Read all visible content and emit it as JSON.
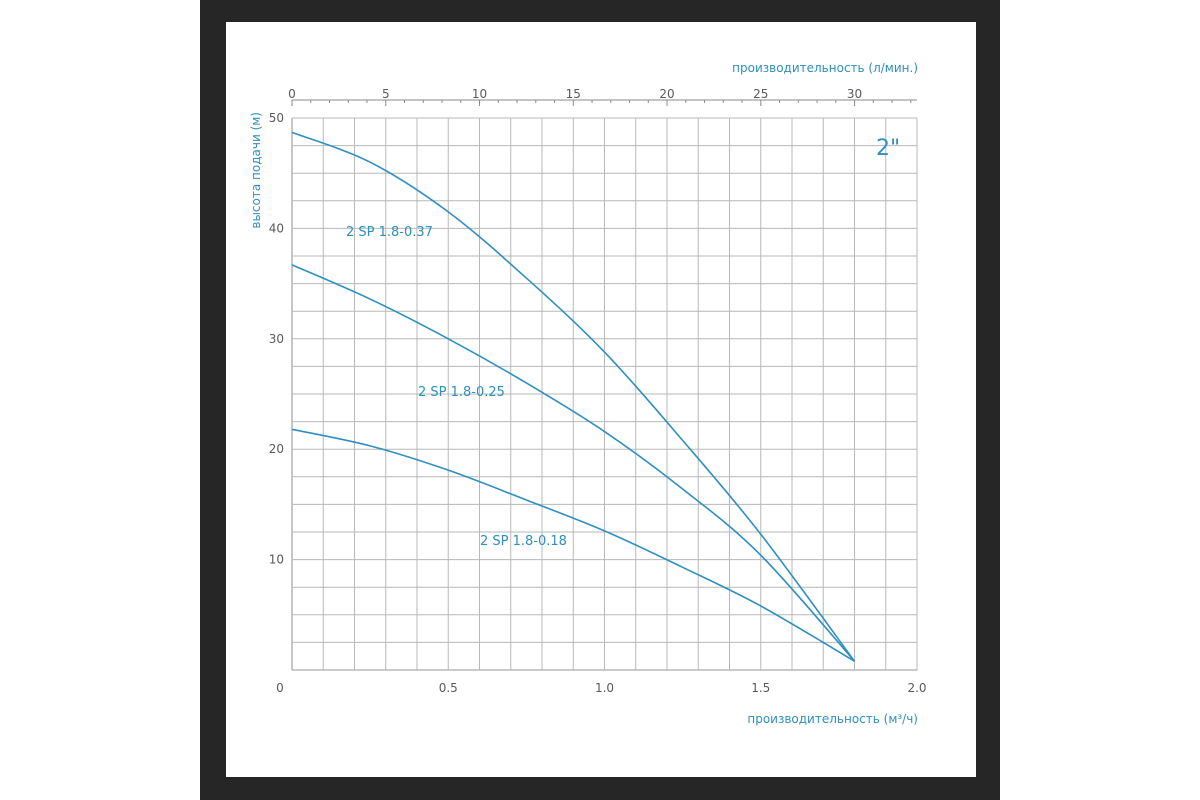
{
  "chart_data": {
    "type": "line",
    "size_label": "2\"",
    "xlabel": "производительность (м³/ч)",
    "x2label": "производительность (л/мин.)",
    "ylabel": "высота подачи (м)",
    "xlim": [
      0,
      2.0
    ],
    "x2lim": [
      0,
      33.33
    ],
    "ylim": [
      0,
      50
    ],
    "x_ticks": [
      "0",
      "0.5",
      "1.0",
      "1.5",
      "2.0"
    ],
    "x2_ticks": [
      "0",
      "5",
      "10",
      "15",
      "20",
      "25",
      "30"
    ],
    "y_ticks": [
      "10",
      "20",
      "30",
      "40",
      "50"
    ],
    "grid": true,
    "series": [
      {
        "name": "2 SP 1.8-0.37",
        "x": [
          0,
          0.25,
          0.5,
          0.75,
          1.0,
          1.25,
          1.5,
          1.8
        ],
        "y": [
          48.7,
          46.0,
          41.5,
          35.5,
          28.8,
          20.8,
          12.3,
          0.8
        ]
      },
      {
        "name": "2 SP 1.8-0.25",
        "x": [
          0,
          0.25,
          0.5,
          0.75,
          1.0,
          1.25,
          1.5,
          1.8
        ],
        "y": [
          36.7,
          33.6,
          30.0,
          26.0,
          21.6,
          16.4,
          10.4,
          0.8
        ]
      },
      {
        "name": "2 SP 1.8-0.18",
        "x": [
          0,
          0.25,
          0.5,
          0.75,
          1.0,
          1.25,
          1.5,
          1.8
        ],
        "y": [
          21.8,
          20.3,
          18.1,
          15.4,
          12.6,
          9.3,
          5.8,
          0.8
        ]
      }
    ],
    "colors": {
      "curve": "#2e8fc0",
      "grid": "#b8b8b8",
      "axis_text": "#5a5a5a",
      "title_text": "#2e8fc0"
    }
  }
}
